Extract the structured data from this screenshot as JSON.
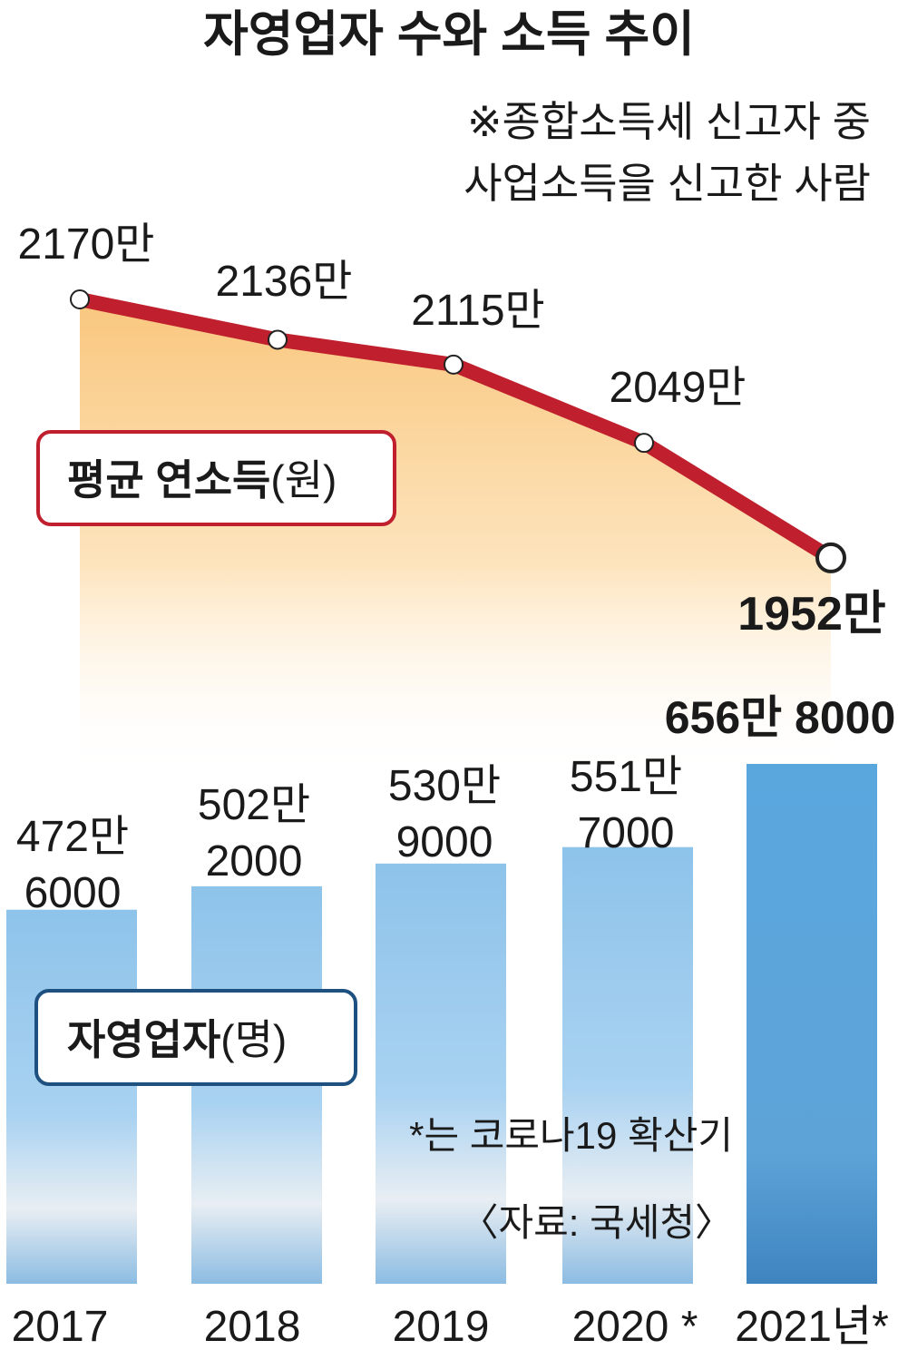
{
  "chart_data": {
    "type": "bar-line",
    "title": "자영업자 수와 소득 추이",
    "note": [
      "※종합소득세 신고자 중",
      "사업소득을 신고한 사람"
    ],
    "categories": [
      "2017",
      "2018",
      "2019",
      "2020 *",
      "2021년*"
    ],
    "series": [
      {
        "name": "자영업자",
        "unit": "(명)",
        "type": "bar",
        "color": "#8ec3ea",
        "highlight_color": "#5aa2da",
        "values": [
          4726000,
          5022000,
          5309000,
          5517000,
          6568000
        ],
        "value_labels": [
          [
            "472만",
            "6000"
          ],
          [
            "502만",
            "2000"
          ],
          [
            "530만",
            "9000"
          ],
          [
            "551만",
            "7000"
          ],
          [
            "656만 8000"
          ]
        ]
      },
      {
        "name": "평균 연소득",
        "unit": "(원)",
        "type": "line",
        "color": "#c0202e",
        "values": [
          21700000,
          21360000,
          21150000,
          20490000,
          19520000
        ],
        "value_labels": [
          "2170만",
          "2136만",
          "2115만",
          "2049만",
          "1952만"
        ]
      }
    ],
    "footnote": "*는 코로나19 확산기",
    "source": "〈자료: 국세청〉"
  }
}
